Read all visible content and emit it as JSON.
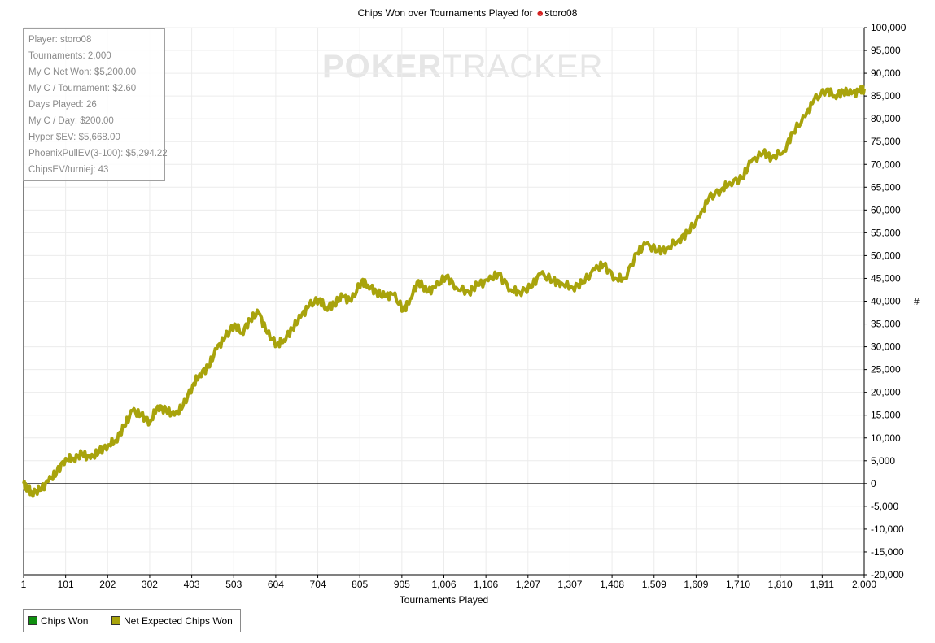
{
  "chart_data": {
    "type": "line",
    "title_prefix": "Chips Won over Tournaments Played for",
    "title_icon": "spade-icon",
    "title_player": "storo08",
    "xlabel": "Tournaments Played",
    "ylabel": "#",
    "x_ticks": [
      "1",
      "101",
      "202",
      "302",
      "403",
      "503",
      "604",
      "704",
      "805",
      "905",
      "1,006",
      "1,106",
      "1,207",
      "1,307",
      "1,408",
      "1,509",
      "1,609",
      "1,710",
      "1,810",
      "1,911",
      "2,000"
    ],
    "xlim": [
      1,
      2000
    ],
    "ylim": [
      -20000,
      100000
    ],
    "y_ticks": [
      100000,
      95000,
      90000,
      85000,
      80000,
      75000,
      70000,
      65000,
      60000,
      55000,
      50000,
      45000,
      40000,
      35000,
      30000,
      25000,
      20000,
      15000,
      10000,
      5000,
      0,
      -5000,
      -10000,
      -15000,
      -20000
    ],
    "y_tick_labels": [
      "100,000",
      "95,000",
      "90,000",
      "85,000",
      "80,000",
      "75,000",
      "70,000",
      "65,000",
      "60,000",
      "55,000",
      "50,000",
      "45,000",
      "40,000",
      "35,000",
      "30,000",
      "25,000",
      "20,000",
      "15,000",
      "10,000",
      "5,000",
      "0",
      "-5,000",
      "-10,000",
      "-15,000",
      "-20,000"
    ],
    "grid": true,
    "legend_position": "bottom-left",
    "series": [
      {
        "name": "Chips Won",
        "color": "#0f8f0f",
        "x": [],
        "y": []
      },
      {
        "name": "Net Expected Chips Won",
        "color": "#a8a30c",
        "x": [
          1,
          10,
          20,
          40,
          60,
          80,
          101,
          120,
          140,
          160,
          180,
          202,
          220,
          240,
          260,
          280,
          302,
          320,
          340,
          360,
          380,
          403,
          420,
          440,
          460,
          480,
          503,
          520,
          540,
          560,
          580,
          604,
          620,
          640,
          660,
          680,
          704,
          720,
          740,
          760,
          780,
          805,
          820,
          840,
          860,
          880,
          905,
          920,
          940,
          960,
          980,
          1006,
          1030,
          1060,
          1080,
          1106,
          1130,
          1160,
          1180,
          1207,
          1230,
          1260,
          1280,
          1307,
          1330,
          1360,
          1380,
          1408,
          1430,
          1460,
          1480,
          1509,
          1530,
          1560,
          1580,
          1609,
          1630,
          1660,
          1680,
          1710,
          1730,
          1760,
          1780,
          1810,
          1830,
          1860,
          1880,
          1911,
          1930,
          1950,
          1970,
          1990,
          2000
        ],
        "y": [
          0,
          -1000,
          -2000,
          -1500,
          500,
          2500,
          5500,
          5500,
          6500,
          5500,
          7000,
          8500,
          9500,
          12500,
          16000,
          15000,
          13500,
          17000,
          16000,
          15000,
          17000,
          21500,
          24000,
          25500,
          29500,
          32000,
          35000,
          33000,
          36000,
          37500,
          33000,
          30500,
          31500,
          34000,
          36500,
          39000,
          40500,
          38500,
          39500,
          41000,
          40000,
          44500,
          43500,
          42000,
          41000,
          41500,
          38000,
          40500,
          44500,
          42000,
          43000,
          45500,
          43000,
          42000,
          43500,
          44500,
          46000,
          42500,
          42000,
          43000,
          46000,
          44500,
          44000,
          43000,
          44000,
          47000,
          48000,
          45000,
          45000,
          50500,
          52500,
          51000,
          51500,
          53500,
          55000,
          58500,
          62500,
          64500,
          66000,
          67000,
          70500,
          72500,
          71500,
          73000,
          77000,
          80500,
          84000,
          86500,
          85000,
          86000,
          85500,
          86000,
          86500
        ]
      }
    ]
  },
  "info_box": {
    "lines": [
      "Player: storo08",
      "Tournaments: 2,000",
      "My C Net Won: $5,200.00",
      "My C / Tournament: $2.60",
      "Days Played: 26",
      "My C / Day: $200.00",
      "Hyper $EV: $5,668.00",
      "PhoenixPullEV(3-100): $5,294.22",
      "ChipsEV/turniej: 43"
    ]
  },
  "watermark": {
    "bold": "POKER",
    "thin": "TRACKER"
  },
  "legend": {
    "items": [
      {
        "label": "Chips Won",
        "color": "#0f8f0f"
      },
      {
        "label": "Net Expected Chips Won",
        "color": "#a8a30c"
      }
    ]
  }
}
